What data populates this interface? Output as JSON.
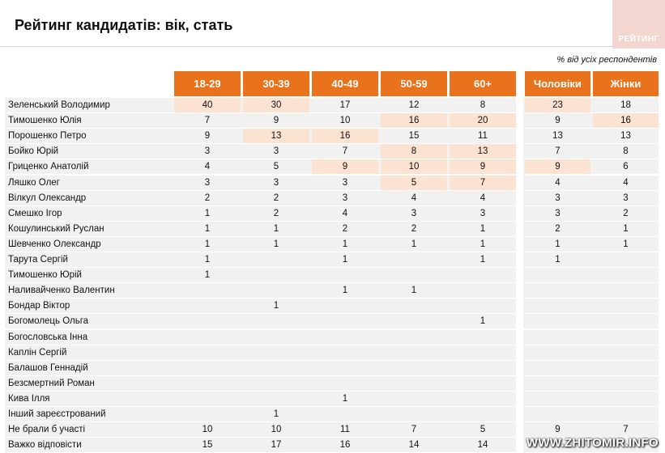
{
  "header": {
    "title": "Рейтинг кандидатів: вік, стать",
    "subtitle": "% від усіх респондентів",
    "brand": "РЕЙТИНГ"
  },
  "watermark": "WWW.ZHITOMIR.INFO",
  "colors": {
    "accent": "#e8731c",
    "highlight": "#fbe2d1",
    "row": "#f1f1f1"
  },
  "chart_data": {
    "type": "table",
    "columns": [
      "18-29",
      "30-39",
      "40-49",
      "50-59",
      "60+",
      "Чоловіки",
      "Жінки"
    ],
    "rows": [
      {
        "name": "Зеленський Володимир",
        "values": [
          "40",
          "30",
          "17",
          "12",
          "8",
          "23",
          "18"
        ],
        "highlight": [
          0,
          1,
          5
        ]
      },
      {
        "name": "Тимошенко Юлія",
        "values": [
          "7",
          "9",
          "10",
          "16",
          "20",
          "9",
          "16"
        ],
        "highlight": [
          3,
          4,
          6
        ]
      },
      {
        "name": "Порошенко Петро",
        "values": [
          "9",
          "13",
          "16",
          "15",
          "11",
          "13",
          "13"
        ],
        "highlight": [
          1,
          2
        ]
      },
      {
        "name": "Бойко Юрій",
        "values": [
          "3",
          "3",
          "7",
          "8",
          "13",
          "7",
          "8"
        ],
        "highlight": [
          3,
          4
        ]
      },
      {
        "name": "Гриценко Анатолій",
        "values": [
          "4",
          "5",
          "9",
          "10",
          "9",
          "9",
          "6"
        ],
        "highlight": [
          2,
          3,
          4,
          5
        ]
      },
      {
        "name": "Ляшко Олег",
        "values": [
          "3",
          "3",
          "3",
          "5",
          "7",
          "4",
          "4"
        ],
        "highlight": [
          3,
          4
        ]
      },
      {
        "name": "Вілкул Олександр",
        "values": [
          "2",
          "2",
          "3",
          "4",
          "4",
          "3",
          "3"
        ],
        "highlight": []
      },
      {
        "name": "Смешко Ігор",
        "values": [
          "1",
          "2",
          "4",
          "3",
          "3",
          "3",
          "2"
        ],
        "highlight": []
      },
      {
        "name": "Кошулинський Руслан",
        "values": [
          "1",
          "1",
          "2",
          "2",
          "1",
          "2",
          "1"
        ],
        "highlight": []
      },
      {
        "name": "Шевченко Олександр",
        "values": [
          "1",
          "1",
          "1",
          "1",
          "1",
          "1",
          "1"
        ],
        "highlight": []
      },
      {
        "name": "Тарута Сергій",
        "values": [
          "1",
          "",
          "1",
          "",
          "1",
          "1",
          ""
        ],
        "highlight": []
      },
      {
        "name": "Тимошенко Юрій",
        "values": [
          "1",
          "",
          "",
          "",
          "",
          "",
          ""
        ],
        "highlight": []
      },
      {
        "name": "Наливайченко Валентин",
        "values": [
          "",
          "",
          "1",
          "1",
          "",
          "",
          ""
        ],
        "highlight": []
      },
      {
        "name": "Бондар Віктор",
        "values": [
          "",
          "1",
          "",
          "",
          "",
          "",
          ""
        ],
        "highlight": []
      },
      {
        "name": "Богомолець Ольга",
        "values": [
          "",
          "",
          "",
          "",
          "1",
          "",
          ""
        ],
        "highlight": []
      },
      {
        "name": "Богословська Інна",
        "values": [
          "",
          "",
          "",
          "",
          "",
          "",
          ""
        ],
        "highlight": []
      },
      {
        "name": "Каплін Сергій",
        "values": [
          "",
          "",
          "",
          "",
          "",
          "",
          ""
        ],
        "highlight": []
      },
      {
        "name": "Балашов Геннадій",
        "values": [
          "",
          "",
          "",
          "",
          "",
          "",
          ""
        ],
        "highlight": []
      },
      {
        "name": "Безсмертний Роман",
        "values": [
          "",
          "",
          "",
          "",
          "",
          "",
          ""
        ],
        "highlight": []
      },
      {
        "name": "Кива Ілля",
        "values": [
          "",
          "",
          "1",
          "",
          "",
          "",
          ""
        ],
        "highlight": []
      },
      {
        "name": "Інший зареєстрований",
        "values": [
          "",
          "1",
          "",
          "",
          "",
          "",
          ""
        ],
        "highlight": []
      },
      {
        "name": "Не брали б участі",
        "values": [
          "10",
          "10",
          "11",
          "7",
          "5",
          "9",
          "7"
        ],
        "highlight": []
      },
      {
        "name": "Важко відповісти",
        "values": [
          "15",
          "17",
          "16",
          "14",
          "14",
          "",
          ""
        ],
        "highlight": []
      }
    ]
  }
}
